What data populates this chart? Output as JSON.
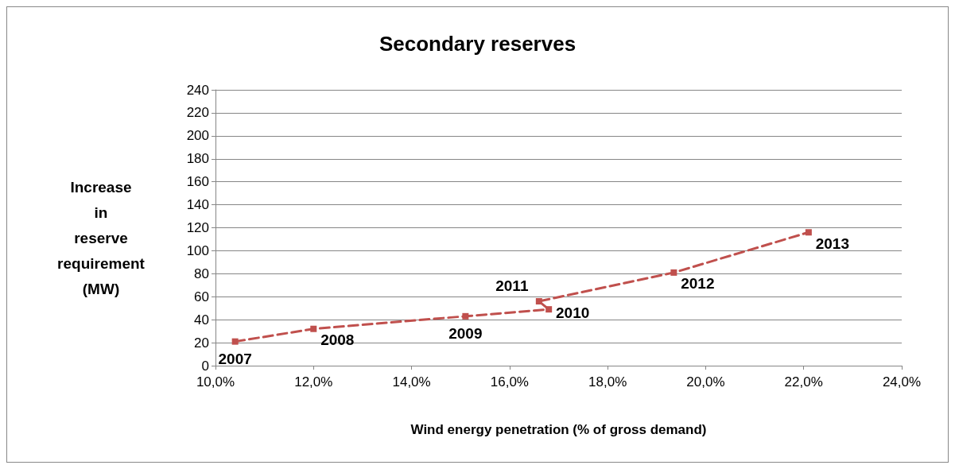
{
  "chart_data": {
    "type": "line",
    "title": "Secondary reserves",
    "xlabel": "Wind energy penetration (% of gross demand)",
    "ylabel": "Increase in reserve requirement (MW)",
    "series": [
      {
        "color": "#c0504d",
        "x": [
          10.4,
          12.0,
          15.1,
          16.8,
          16.6,
          19.35,
          22.1
        ],
        "values": [
          21,
          32,
          43,
          49,
          56,
          81,
          116
        ]
      }
    ],
    "annotations": [
      {
        "text": "2007",
        "x": 10.4,
        "y": 21
      },
      {
        "text": "2008",
        "x": 12.0,
        "y": 32
      },
      {
        "text": "2009",
        "x": 15.1,
        "y": 43
      },
      {
        "text": "2010",
        "x": 16.8,
        "y": 49
      },
      {
        "text": "2011",
        "x": 16.6,
        "y": 56
      },
      {
        "text": "2012",
        "x": 19.35,
        "y": 81
      },
      {
        "text": "2013",
        "x": 22.1,
        "y": 116
      }
    ],
    "xlim": [
      10,
      24
    ],
    "xticks": [
      {
        "value": 10,
        "label": "10,0%"
      },
      {
        "value": 12,
        "label": "12,0%"
      },
      {
        "value": 14,
        "label": "14,0%"
      },
      {
        "value": 16,
        "label": "16,0%"
      },
      {
        "value": 18,
        "label": "18,0%"
      },
      {
        "value": 20,
        "label": "20,0%"
      },
      {
        "value": 22,
        "label": "22,0%"
      },
      {
        "value": 24,
        "label": "24,0%"
      }
    ],
    "ylim": [
      0,
      240
    ],
    "yticks": [
      0,
      20,
      40,
      60,
      80,
      100,
      120,
      140,
      160,
      180,
      200,
      220,
      240
    ],
    "grid": "y",
    "marker": "square",
    "line_style": "dashed"
  }
}
